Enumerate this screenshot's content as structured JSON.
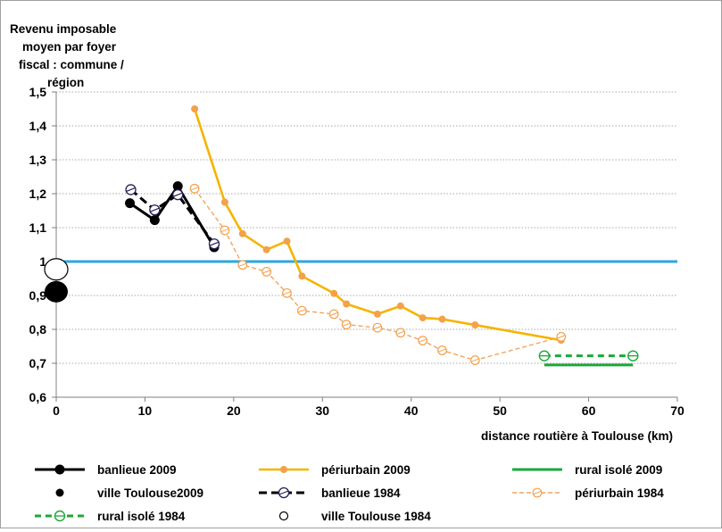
{
  "chart_data": {
    "type": "line",
    "ylabel_lines": [
      "Revenu imposable",
      "moyen par foyer",
      "fiscal : commune /",
      "région"
    ],
    "xlabel": "distance routière à Toulouse (km)",
    "xlim": [
      0,
      70
    ],
    "ylim": [
      0.6,
      1.5
    ],
    "x_ticks": [
      0,
      10,
      20,
      30,
      40,
      50,
      60,
      70
    ],
    "y_ticks": [
      0.6,
      0.7,
      0.8,
      0.9,
      1.0,
      1.1,
      1.2,
      1.3,
      1.4,
      1.5
    ],
    "x_tick_labels": [
      "0",
      "10",
      "20",
      "30",
      "40",
      "50",
      "60",
      "70"
    ],
    "y_tick_labels": [
      "0,6",
      "0,7",
      "0,8",
      "0,9",
      "1",
      "1,1",
      "1,2",
      "1,3",
      "1,4",
      "1,5"
    ],
    "grid": true,
    "reference_line": {
      "y": 1.0,
      "color": "#2ea6df"
    },
    "series": [
      {
        "name": "banlieue 2009",
        "color": "#000000",
        "style": "solid",
        "marker": "filled",
        "x": [
          8.3,
          11.1,
          13.7,
          17.8
        ],
        "y": [
          1.172,
          1.122,
          1.222,
          1.042
        ]
      },
      {
        "name": "banlieue 1984",
        "color": "#000000",
        "style": "dashed",
        "marker": "open-dark",
        "x": [
          8.4,
          11.1,
          13.7,
          17.8
        ],
        "y": [
          1.212,
          1.152,
          1.197,
          1.052
        ]
      },
      {
        "name": "périurbain 2009",
        "color": "#f5b400",
        "style": "solid",
        "marker": "filled-orange",
        "x": [
          15.6,
          19.0,
          21.0,
          23.7,
          26.0,
          27.7,
          31.3,
          32.7,
          36.2,
          38.8,
          41.3,
          43.5,
          47.2,
          56.9
        ],
        "y": [
          1.45,
          1.175,
          1.082,
          1.035,
          1.06,
          0.957,
          0.906,
          0.875,
          0.845,
          0.869,
          0.834,
          0.83,
          0.813,
          0.768
        ]
      },
      {
        "name": "périurbain 1984",
        "color": "#f4a460",
        "style": "dashed",
        "marker": "open-orange",
        "x": [
          15.6,
          19.0,
          21.0,
          23.7,
          26.0,
          27.7,
          31.3,
          32.7,
          36.2,
          38.8,
          41.3,
          43.5,
          47.2,
          56.9
        ],
        "y": [
          1.215,
          1.092,
          0.99,
          0.97,
          0.907,
          0.855,
          0.845,
          0.814,
          0.805,
          0.79,
          0.767,
          0.738,
          0.709,
          0.778
        ]
      },
      {
        "name": "rural isolé 2009",
        "color": "#1aa83a",
        "style": "solid",
        "marker": "none",
        "x": [
          55.0,
          65.0
        ],
        "y": [
          0.695,
          0.695
        ]
      },
      {
        "name": "rural isolé 1984",
        "color": "#1aa83a",
        "style": "dashed",
        "marker": "open-green",
        "x": [
          55.0,
          65.0
        ],
        "y": [
          0.722,
          0.722
        ]
      },
      {
        "name": "ville Toulouse2009",
        "color": "#000000",
        "style": "none",
        "marker": "big-filled",
        "x": [
          0
        ],
        "y": [
          0.911
        ]
      },
      {
        "name": "ville Toulouse 1984",
        "color": "#000000",
        "style": "none",
        "marker": "big-open",
        "x": [
          0
        ],
        "y": [
          0.977
        ]
      }
    ],
    "legend_rows": [
      [
        "banlieue 2009",
        "périurbain 2009",
        "rural isolé 2009"
      ],
      [
        "ville Toulouse2009",
        "banlieue 1984",
        "périurbain 1984"
      ],
      [
        "rural isolé 1984",
        "ville Toulouse 1984"
      ]
    ]
  }
}
